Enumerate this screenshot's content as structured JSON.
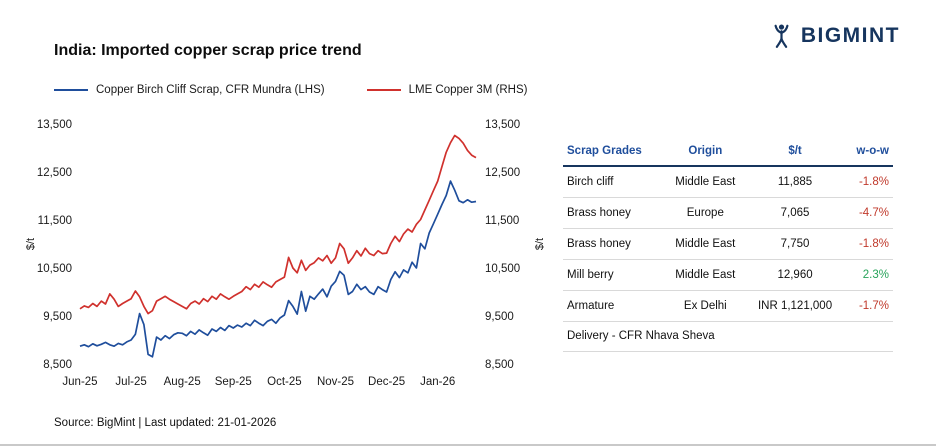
{
  "logo": {
    "text": "BIGMINT"
  },
  "title": "India: Imported copper scrap price trend",
  "legend": [
    {
      "label": "Copper Birch Cliff Scrap, CFR Mundra (LHS)",
      "color": "#1f4e9c"
    },
    {
      "label": "LME Copper 3M (RHS)",
      "color": "#d0312d"
    }
  ],
  "chart_data": {
    "type": "line",
    "title": "India: Imported copper scrap price trend",
    "ylabel_left": "$/t",
    "ylabel_right": "$/t",
    "ylim": [
      8500,
      13500
    ],
    "yticks": [
      8500,
      9500,
      10500,
      11500,
      12500,
      13500
    ],
    "x_tick_labels": [
      "Jun-25",
      "Jul-25",
      "Aug-25",
      "Sep-25",
      "Oct-25",
      "Nov-25",
      "Dec-25",
      "Jan-26"
    ],
    "x_tick_indices": [
      0,
      12,
      24,
      36,
      48,
      60,
      72,
      84
    ],
    "grid": false,
    "legend_position": "top",
    "series": [
      {
        "name": "Copper Birch Cliff Scrap, CFR Mundra (LHS)",
        "axis": "left",
        "color": "#1f4e9c",
        "values": [
          8870,
          8900,
          8860,
          8920,
          8880,
          8910,
          8950,
          8900,
          8870,
          8930,
          8900,
          8960,
          9000,
          9120,
          9550,
          9320,
          8700,
          8650,
          9060,
          9000,
          9090,
          9030,
          9110,
          9150,
          9140,
          9090,
          9180,
          9120,
          9210,
          9150,
          9100,
          9230,
          9180,
          9260,
          9200,
          9300,
          9250,
          9310,
          9270,
          9350,
          9300,
          9410,
          9350,
          9300,
          9390,
          9430,
          9350,
          9460,
          9520,
          9820,
          9700,
          9540,
          10010,
          9600,
          9910,
          9850,
          9960,
          10060,
          9900,
          10120,
          10220,
          10430,
          10350,
          9950,
          10010,
          10160,
          10050,
          10110,
          10000,
          9950,
          10110,
          10050,
          10000,
          10260,
          10420,
          10300,
          10460,
          10400,
          10620,
          10500,
          11010,
          10900,
          11230,
          11420,
          11620,
          11820,
          12010,
          12310,
          12120,
          11900,
          11860,
          11920,
          11870,
          11885
        ]
      },
      {
        "name": "LME Copper 3M (RHS)",
        "axis": "right",
        "color": "#d0312d",
        "values": [
          9650,
          9710,
          9680,
          9760,
          9700,
          9810,
          9750,
          9960,
          9850,
          9700,
          9760,
          9810,
          9860,
          10020,
          9900,
          9700,
          9550,
          9610,
          9810,
          9860,
          9910,
          9850,
          9800,
          9750,
          9700,
          9650,
          9760,
          9810,
          9750,
          9860,
          9800,
          9910,
          9850,
          9960,
          9900,
          9850,
          9910,
          9960,
          10010,
          10110,
          10050,
          10160,
          10100,
          10210,
          10150,
          10100,
          10210,
          10260,
          10310,
          10720,
          10500,
          10400,
          10660,
          10450,
          10560,
          10610,
          10710,
          10650,
          10760,
          10600,
          10710,
          11010,
          10900,
          10600,
          10710,
          10860,
          10750,
          10910,
          10800,
          10760,
          10860,
          10800,
          10810,
          11010,
          11160,
          11050,
          11210,
          11310,
          11250,
          11410,
          11510,
          11710,
          11910,
          12110,
          12310,
          12610,
          12910,
          13110,
          13260,
          13200,
          13100,
          12950,
          12850,
          12800
        ]
      }
    ]
  },
  "table": {
    "headers": [
      "Scrap Grades",
      "Origin",
      "$/t",
      "w-o-w"
    ],
    "rows": [
      {
        "grade": "Birch cliff",
        "origin": "Middle East",
        "price": "11,885",
        "wow": "-1.8%",
        "wow_color": "#c0392b"
      },
      {
        "grade": "Brass honey",
        "origin": "Europe",
        "price": "7,065",
        "wow": "-4.7%",
        "wow_color": "#c0392b"
      },
      {
        "grade": "Brass honey",
        "origin": "Middle East",
        "price": "7,750",
        "wow": "-1.8%",
        "wow_color": "#c0392b"
      },
      {
        "grade": "Mill berry",
        "origin": "Middle East",
        "price": "12,960",
        "wow": "2.3%",
        "wow_color": "#27a35a"
      },
      {
        "grade": "Armature",
        "origin": "Ex Delhi",
        "price": "INR 1,121,000",
        "wow": "-1.7%",
        "wow_color": "#c0392b"
      }
    ],
    "footnote": "Delivery - CFR Nhava Sheva"
  },
  "source": "Source: BigMint | Last updated: 21-01-2026",
  "colors": {
    "brand_navy": "#16355e",
    "header_blue": "#1f4e9c",
    "neg_red": "#c0392b",
    "pos_green": "#27a35a"
  }
}
